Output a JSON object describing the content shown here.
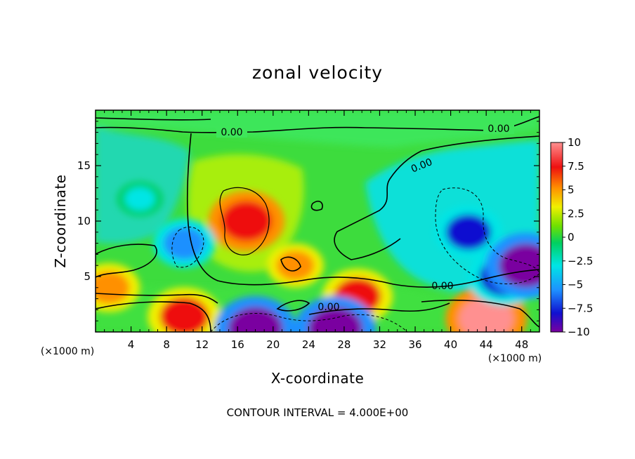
{
  "chart_data": {
    "type": "heatmap",
    "title": "zonal velocity",
    "xlabel": "X-coordinate",
    "ylabel": "Z-coordinate",
    "x_unit": "(×1000 m)",
    "xlim": [
      0,
      50
    ],
    "ylim": [
      0,
      20
    ],
    "x_ticks": [
      "4",
      "8",
      "12",
      "16",
      "20",
      "24",
      "28",
      "32",
      "36",
      "40",
      "44",
      "48"
    ],
    "y_ticks": [
      "5",
      "10",
      "15"
    ],
    "colorbar": {
      "range": [
        -10,
        10
      ],
      "tick_labels": [
        "10",
        "7.5",
        "5",
        "2.5",
        "0",
        "−2.5",
        "−5",
        "−7.5",
        "−10"
      ]
    },
    "contour_label": "0.00",
    "contour_interval_text": "CONTOUR INTERVAL = 4.000E+00",
    "features": [
      {
        "x": 17,
        "z": 10,
        "value": 8.5
      },
      {
        "x": 29.5,
        "z": 3.2,
        "value": 7.5
      },
      {
        "x": 10,
        "z": 1.4,
        "value": 8
      },
      {
        "x": 44,
        "z": 1.2,
        "value": 9.5
      },
      {
        "x": 1.5,
        "z": 4,
        "value": 6
      },
      {
        "x": 22.5,
        "z": 6,
        "value": 5
      },
      {
        "x": 10,
        "z": 8,
        "value": -6
      },
      {
        "x": 42,
        "z": 9,
        "value": -7
      },
      {
        "x": 46,
        "z": 5,
        "value": -8
      },
      {
        "x": 5,
        "z": 12,
        "value": -3
      },
      {
        "x": 48.5,
        "z": 6,
        "value": -9.5
      },
      {
        "x": 18,
        "z": 0.3,
        "value": -9.5
      },
      {
        "x": 27,
        "z": 0.3,
        "value": -9.5
      }
    ],
    "colors": {
      "stops": [
        "#7a00a0",
        "#1010d0",
        "#1e90ff",
        "#00e5e5",
        "#00d060",
        "#70e000",
        "#f0f000",
        "#ff9000",
        "#ee1010",
        "#ff9090"
      ]
    }
  }
}
